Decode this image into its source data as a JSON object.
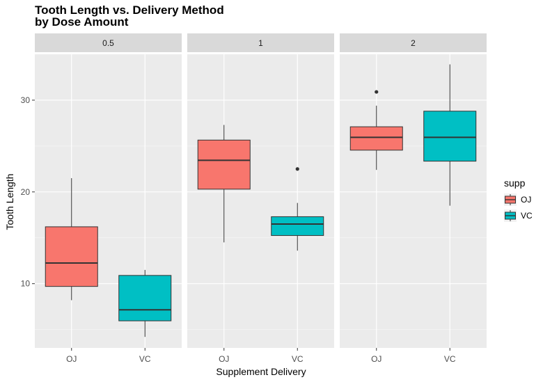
{
  "chart_data": {
    "type": "boxplot",
    "title": "Tooth Length vs. Delivery Method",
    "subtitle": "by Dose Amount",
    "xlabel": "Supplement Delivery",
    "ylabel": "Tooth Length",
    "ylim": [
      3,
      35
    ],
    "yticks": [
      10,
      20,
      30
    ],
    "categories": [
      "OJ",
      "VC"
    ],
    "grid": true,
    "legend": {
      "title": "supp",
      "position": "right",
      "entries": [
        {
          "label": "OJ",
          "color": "#F8766D"
        },
        {
          "label": "VC",
          "color": "#00BFC4"
        }
      ]
    },
    "facets": [
      {
        "label": "0.5",
        "boxes": [
          {
            "group": "OJ",
            "min": 8.2,
            "q1": 9.7,
            "median": 12.25,
            "q3": 16.2,
            "max": 21.5,
            "outliers": []
          },
          {
            "group": "VC",
            "min": 4.2,
            "q1": 5.95,
            "median": 7.15,
            "q3": 10.9,
            "max": 11.5,
            "outliers": []
          }
        ]
      },
      {
        "label": "1",
        "boxes": [
          {
            "group": "OJ",
            "min": 14.5,
            "q1": 20.3,
            "median": 23.45,
            "q3": 25.65,
            "max": 27.3,
            "outliers": []
          },
          {
            "group": "VC",
            "min": 13.6,
            "q1": 15.25,
            "median": 16.5,
            "q3": 17.3,
            "max": 18.8,
            "outliers": [
              22.5
            ]
          }
        ]
      },
      {
        "label": "2",
        "boxes": [
          {
            "group": "OJ",
            "min": 22.4,
            "q1": 24.55,
            "median": 25.95,
            "q3": 27.1,
            "max": 29.4,
            "outliers": [
              30.9
            ]
          },
          {
            "group": "VC",
            "min": 18.5,
            "q1": 23.35,
            "median": 25.95,
            "q3": 28.8,
            "max": 33.9,
            "outliers": []
          }
        ]
      }
    ]
  }
}
